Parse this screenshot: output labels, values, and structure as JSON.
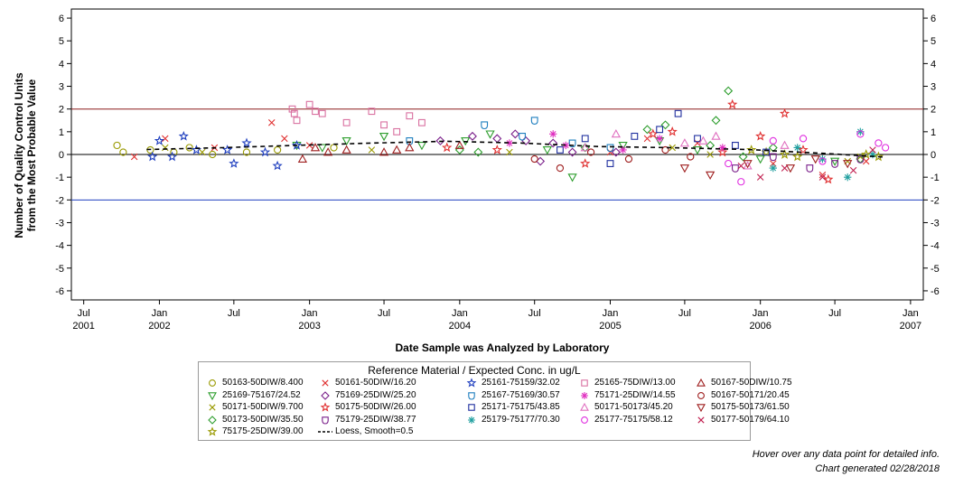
{
  "chart_data": {
    "type": "scatter",
    "ylabel_line1": "Number of Quality Control Units",
    "ylabel_line2": "from the Most Probable Value",
    "xlabel": "Date Sample was Analyzed by Laboratory",
    "ylim": [
      -6.4,
      6.4
    ],
    "yticks": [
      -6,
      -5,
      -4,
      -3,
      -2,
      -1,
      0,
      1,
      2,
      3,
      4,
      5,
      6
    ],
    "xlim": [
      "2001-06-01",
      "2007-02-01"
    ],
    "xticks": [
      {
        "date": "2001-07-01",
        "line1": "Jul",
        "line2": "2001"
      },
      {
        "date": "2002-01-01",
        "line1": "Jan",
        "line2": "2002"
      },
      {
        "date": "2002-07-01",
        "line1": "Jul",
        "line2": ""
      },
      {
        "date": "2003-01-01",
        "line1": "Jan",
        "line2": "2003"
      },
      {
        "date": "2003-07-01",
        "line1": "Jul",
        "line2": ""
      },
      {
        "date": "2004-01-01",
        "line1": "Jan",
        "line2": "2004"
      },
      {
        "date": "2004-07-01",
        "line1": "Jul",
        "line2": ""
      },
      {
        "date": "2005-01-01",
        "line1": "Jan",
        "line2": "2005"
      },
      {
        "date": "2005-07-01",
        "line1": "Jul",
        "line2": ""
      },
      {
        "date": "2006-01-01",
        "line1": "Jan",
        "line2": "2006"
      },
      {
        "date": "2006-07-01",
        "line1": "Jul",
        "line2": ""
      },
      {
        "date": "2007-01-01",
        "line1": "Jan",
        "line2": "2007"
      }
    ],
    "reference_lines": [
      {
        "y": 2,
        "color": "#8b1a1a"
      },
      {
        "y": 0,
        "color": "#000000"
      },
      {
        "y": -2,
        "color": "#1f3fbf"
      }
    ],
    "grid": false,
    "legend_position": "bottom",
    "legend_title": "Reference Material / Expected Conc. in ug/L",
    "series": [
      {
        "name": "50163-50DIW/8.400",
        "marker": "circle",
        "color": "#999900",
        "points": [
          [
            "2001-09-20",
            0.4
          ],
          [
            "2001-10-05",
            0.1
          ],
          [
            "2001-12-10",
            0.2
          ],
          [
            "2002-02-05",
            0.1
          ],
          [
            "2002-03-15",
            0.3
          ],
          [
            "2002-05-10",
            0.0
          ],
          [
            "2002-08-01",
            0.1
          ],
          [
            "2002-10-15",
            0.2
          ],
          [
            "2003-03-01",
            0.3
          ]
        ]
      },
      {
        "name": "25169-75167/24.52",
        "marker": "triangle-down",
        "color": "#2e9e2e",
        "points": [
          [
            "2002-12-01",
            0.4
          ],
          [
            "2003-02-01",
            0.3
          ],
          [
            "2003-04-01",
            0.6
          ],
          [
            "2003-07-01",
            0.8
          ],
          [
            "2003-10-01",
            0.4
          ],
          [
            "2004-01-15",
            0.6
          ],
          [
            "2004-03-15",
            0.9
          ],
          [
            "2004-08-01",
            0.2
          ],
          [
            "2004-10-01",
            -1.0
          ],
          [
            "2005-02-01",
            0.4
          ],
          [
            "2005-05-01",
            0.6
          ],
          [
            "2005-08-01",
            0.2
          ],
          [
            "2006-01-01",
            -0.2
          ],
          [
            "2006-07-01",
            -0.3
          ]
        ]
      },
      {
        "name": "50171-50DIW/9.700",
        "marker": "x",
        "color": "#999900",
        "points": [
          [
            "2002-01-15",
            0.3
          ],
          [
            "2002-04-15",
            0.1
          ],
          [
            "2003-06-01",
            0.2
          ],
          [
            "2004-05-01",
            0.1
          ],
          [
            "2005-06-01",
            0.3
          ],
          [
            "2005-09-01",
            0.0
          ],
          [
            "2006-08-01",
            -0.3
          ],
          [
            "2006-09-01",
            -0.1
          ]
        ]
      },
      {
        "name": "50173-50DIW/35.50",
        "marker": "diamond",
        "color": "#2e9e2e",
        "points": [
          [
            "2004-01-01",
            0.2
          ],
          [
            "2004-02-15",
            0.1
          ],
          [
            "2004-11-01",
            0.3
          ],
          [
            "2005-04-01",
            1.1
          ],
          [
            "2005-05-15",
            1.3
          ],
          [
            "2005-09-15",
            1.5
          ],
          [
            "2005-10-15",
            2.8
          ],
          [
            "2005-09-01",
            0.4
          ],
          [
            "2005-11-20",
            -0.1
          ],
          [
            "2006-02-01",
            0.3
          ],
          [
            "2006-09-01",
            -0.2
          ]
        ]
      },
      {
        "name": "75175-25DIW/39.00",
        "marker": "star",
        "color": "#999900",
        "points": [
          [
            "2005-12-10",
            0.2
          ],
          [
            "2006-01-15",
            0.1
          ],
          [
            "2006-03-01",
            0.0
          ],
          [
            "2006-04-01",
            -0.1
          ],
          [
            "2006-09-15",
            0.0
          ],
          [
            "2006-10-15",
            -0.1
          ]
        ]
      },
      {
        "name": "50161-50DIW/16.20",
        "marker": "x",
        "color": "#e03030",
        "points": [
          [
            "2001-11-01",
            -0.1
          ],
          [
            "2002-01-15",
            0.7
          ],
          [
            "2002-05-15",
            0.3
          ],
          [
            "2002-10-01",
            1.4
          ],
          [
            "2002-11-01",
            0.7
          ],
          [
            "2003-01-01",
            0.4
          ],
          [
            "2005-01-01",
            0.1
          ],
          [
            "2005-04-01",
            0.7
          ],
          [
            "2005-08-01",
            0.5
          ],
          [
            "2006-02-01",
            -0.4
          ],
          [
            "2006-06-01",
            -0.9
          ],
          [
            "2006-09-15",
            -0.3
          ]
        ]
      },
      {
        "name": "75169-25DIW/25.20",
        "marker": "diamond",
        "color": "#7a1f8a",
        "points": [
          [
            "2003-11-15",
            0.6
          ],
          [
            "2004-02-01",
            0.8
          ],
          [
            "2004-04-01",
            0.7
          ],
          [
            "2004-05-15",
            0.9
          ],
          [
            "2004-06-10",
            0.6
          ],
          [
            "2004-07-15",
            -0.3
          ],
          [
            "2004-08-15",
            0.5
          ],
          [
            "2004-10-01",
            0.1
          ],
          [
            "2005-01-15",
            0.1
          ]
        ]
      },
      {
        "name": "50175-50DIW/26.00",
        "marker": "star",
        "color": "#e03030",
        "points": [
          [
            "2003-12-01",
            0.3
          ],
          [
            "2004-04-01",
            0.2
          ],
          [
            "2004-11-01",
            -0.4
          ],
          [
            "2005-04-15",
            0.9
          ],
          [
            "2005-06-01",
            1.0
          ],
          [
            "2005-10-25",
            2.2
          ],
          [
            "2005-10-01",
            0.1
          ],
          [
            "2006-01-01",
            0.8
          ],
          [
            "2006-03-01",
            1.8
          ],
          [
            "2006-04-15",
            0.2
          ],
          [
            "2006-06-15",
            -1.1
          ]
        ]
      },
      {
        "name": "75179-25DIW/38.77",
        "marker": "shield",
        "color": "#7a1f8a",
        "points": [
          [
            "2005-11-01",
            -0.6
          ],
          [
            "2006-02-01",
            -0.1
          ],
          [
            "2006-05-01",
            -0.6
          ],
          [
            "2006-07-01",
            -0.4
          ],
          [
            "2006-09-01",
            -0.2
          ]
        ]
      },
      {
        "name": "25161-75159/32.02",
        "marker": "star",
        "color": "#1f3fbf",
        "points": [
          [
            "2001-12-15",
            -0.1
          ],
          [
            "2002-01-01",
            0.6
          ],
          [
            "2002-02-01",
            -0.1
          ],
          [
            "2002-03-01",
            0.8
          ],
          [
            "2002-04-01",
            0.2
          ],
          [
            "2002-06-15",
            0.2
          ],
          [
            "2002-07-01",
            -0.4
          ],
          [
            "2002-08-01",
            0.5
          ],
          [
            "2002-09-15",
            0.1
          ],
          [
            "2002-10-15",
            -0.5
          ],
          [
            "2002-12-01",
            0.4
          ]
        ]
      },
      {
        "name": "25167-75169/30.57",
        "marker": "shield",
        "color": "#1f7fbf",
        "points": [
          [
            "2003-09-01",
            0.6
          ],
          [
            "2004-03-01",
            1.3
          ],
          [
            "2004-06-01",
            0.8
          ],
          [
            "2004-07-01",
            1.5
          ],
          [
            "2004-10-01",
            0.5
          ],
          [
            "2005-01-01",
            0.3
          ]
        ]
      },
      {
        "name": "25171-75175/43.85",
        "marker": "square",
        "color": "#1f2f9f",
        "points": [
          [
            "2004-09-01",
            0.2
          ],
          [
            "2004-11-01",
            0.7
          ],
          [
            "2005-01-01",
            -0.4
          ],
          [
            "2005-03-01",
            0.8
          ],
          [
            "2005-05-01",
            1.1
          ],
          [
            "2005-06-15",
            1.8
          ],
          [
            "2005-08-01",
            0.7
          ],
          [
            "2005-11-01",
            0.4
          ],
          [
            "2006-01-15",
            0.1
          ]
        ]
      },
      {
        "name": "25179-75177/70.30",
        "marker": "asterisk",
        "color": "#1f9f9f",
        "points": [
          [
            "2006-02-01",
            -0.6
          ],
          [
            "2006-04-01",
            0.3
          ],
          [
            "2006-06-01",
            -0.2
          ],
          [
            "2006-08-01",
            -1.0
          ],
          [
            "2006-09-01",
            1.0
          ],
          [
            "2006-10-01",
            0.0
          ]
        ]
      },
      {
        "name": "25165-75DIW/13.00",
        "marker": "square",
        "color": "#d970a0",
        "points": [
          [
            "2002-11-20",
            2.0
          ],
          [
            "2002-11-25",
            1.8
          ],
          [
            "2002-12-01",
            1.5
          ],
          [
            "2003-01-01",
            2.2
          ],
          [
            "2003-01-15",
            1.9
          ],
          [
            "2003-02-01",
            1.8
          ],
          [
            "2003-04-01",
            1.4
          ],
          [
            "2003-06-01",
            1.9
          ],
          [
            "2003-07-01",
            1.3
          ],
          [
            "2003-08-01",
            1.0
          ],
          [
            "2003-09-01",
            1.7
          ],
          [
            "2003-10-01",
            1.4
          ]
        ]
      },
      {
        "name": "75171-25DIW/14.55",
        "marker": "asterisk",
        "color": "#e030c0",
        "points": [
          [
            "2004-05-01",
            0.5
          ],
          [
            "2004-08-15",
            0.9
          ],
          [
            "2004-09-15",
            0.4
          ],
          [
            "2005-02-01",
            0.2
          ],
          [
            "2005-05-01",
            0.7
          ],
          [
            "2005-10-01",
            0.3
          ]
        ]
      },
      {
        "name": "50171-50173/45.20",
        "marker": "triangle",
        "color": "#e070c0",
        "points": [
          [
            "2004-11-01",
            0.3
          ],
          [
            "2005-01-15",
            0.9
          ],
          [
            "2005-07-01",
            0.5
          ],
          [
            "2005-08-15",
            0.6
          ],
          [
            "2005-09-15",
            0.8
          ],
          [
            "2005-12-01",
            -0.5
          ],
          [
            "2006-03-01",
            0.4
          ]
        ]
      },
      {
        "name": "25177-75175/58.12",
        "marker": "circle",
        "color": "#e030e0",
        "points": [
          [
            "2005-10-15",
            -0.4
          ],
          [
            "2005-11-15",
            -1.2
          ],
          [
            "2006-02-01",
            0.6
          ],
          [
            "2006-04-15",
            0.7
          ],
          [
            "2006-06-01",
            -0.3
          ],
          [
            "2006-09-01",
            0.9
          ],
          [
            "2006-10-15",
            0.5
          ],
          [
            "2006-11-01",
            0.3
          ]
        ]
      },
      {
        "name": "50167-50DIW/10.75",
        "marker": "triangle",
        "color": "#9f1f1f",
        "points": [
          [
            "2002-12-15",
            -0.2
          ],
          [
            "2003-01-15",
            0.3
          ],
          [
            "2003-02-15",
            0.1
          ],
          [
            "2003-04-01",
            0.2
          ],
          [
            "2003-07-01",
            0.1
          ],
          [
            "2003-08-01",
            0.2
          ],
          [
            "2003-09-01",
            0.3
          ],
          [
            "2004-01-01",
            0.4
          ]
        ]
      },
      {
        "name": "50167-50171/20.45",
        "marker": "circle",
        "color": "#9f1f1f",
        "points": [
          [
            "2004-07-01",
            -0.2
          ],
          [
            "2004-09-01",
            -0.6
          ],
          [
            "2004-11-15",
            0.1
          ],
          [
            "2005-02-15",
            -0.2
          ],
          [
            "2005-05-15",
            0.2
          ],
          [
            "2005-07-15",
            -0.1
          ]
        ]
      },
      {
        "name": "50175-50173/61.50",
        "marker": "triangle-down",
        "color": "#9f1f1f",
        "points": [
          [
            "2005-07-01",
            -0.6
          ],
          [
            "2005-09-01",
            -0.9
          ],
          [
            "2005-12-01",
            -0.4
          ],
          [
            "2006-03-15",
            -0.6
          ],
          [
            "2006-05-15",
            -0.2
          ],
          [
            "2006-08-01",
            -0.4
          ]
        ]
      },
      {
        "name": "50177-50179/64.10",
        "marker": "x",
        "color": "#c01f4f",
        "points": [
          [
            "2005-11-15",
            -0.5
          ],
          [
            "2006-01-01",
            -1.0
          ],
          [
            "2006-03-01",
            -0.6
          ],
          [
            "2006-06-01",
            -1.0
          ],
          [
            "2006-08-15",
            -0.7
          ],
          [
            "2006-10-01",
            0.2
          ]
        ]
      }
    ],
    "loess": {
      "name": "Loess, Smooth=0.5",
      "color": "#000000",
      "dash": true,
      "points": [
        [
          "2001-12-01",
          0.22
        ],
        [
          "2002-06-01",
          0.3
        ],
        [
          "2002-12-01",
          0.4
        ],
        [
          "2003-06-01",
          0.5
        ],
        [
          "2003-12-01",
          0.58
        ],
        [
          "2004-06-01",
          0.5
        ],
        [
          "2004-12-01",
          0.35
        ],
        [
          "2005-06-01",
          0.3
        ],
        [
          "2005-12-01",
          0.22
        ],
        [
          "2006-06-01",
          0.05
        ],
        [
          "2006-11-01",
          -0.12
        ]
      ]
    }
  },
  "footnote": {
    "line1": "Hover over any data point for detailed info.",
    "line2": "Chart generated 02/28/2018"
  }
}
